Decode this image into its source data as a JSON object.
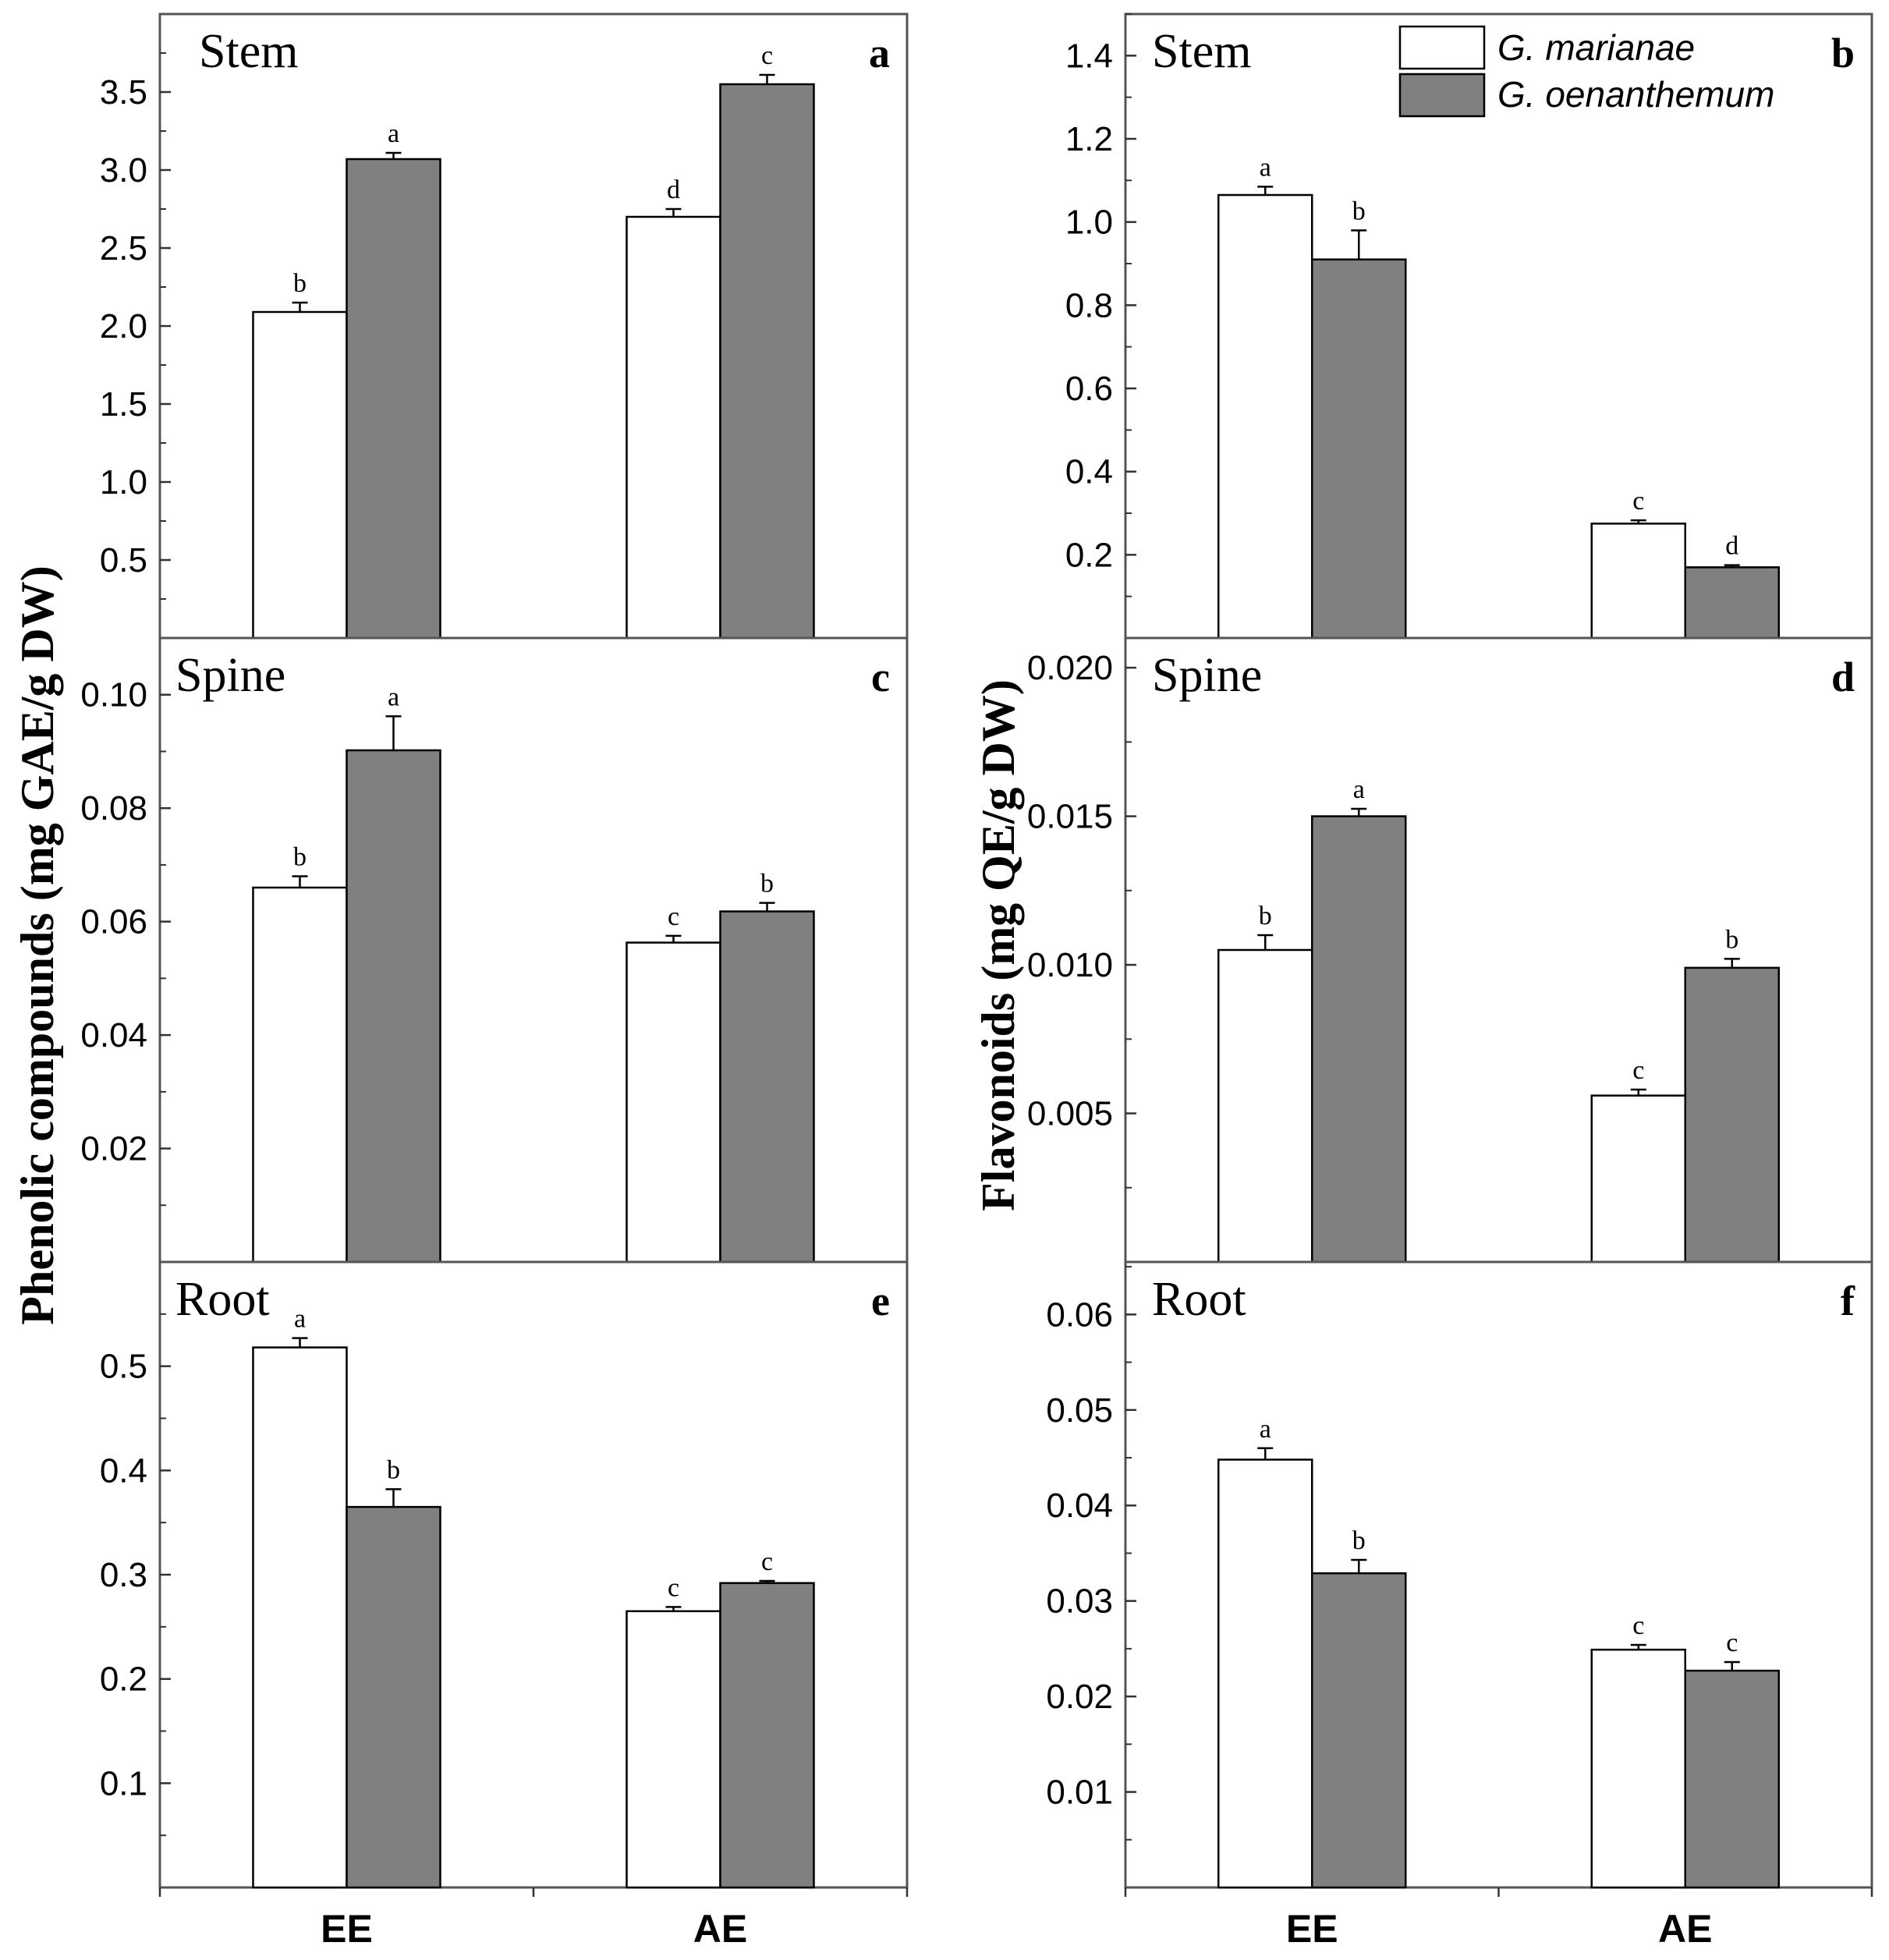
{
  "colors": {
    "series_1_fill": "#ffffff",
    "series_2_fill": "#808080",
    "stroke": "#000000",
    "frame": "#555555"
  },
  "y_axis_titles": {
    "left": "Phenolic compounds (mg GAE/g DW)",
    "right": "Flavonoids (mg QE/g DW)"
  },
  "legend": {
    "items": [
      {
        "label": "G. marianae",
        "color": "#ffffff"
      },
      {
        "label": "G. oenanthemum",
        "color": "#808080"
      }
    ]
  },
  "chart_data": [
    {
      "type": "bar",
      "panel": "a",
      "title": "Stem",
      "categories": [
        "EE",
        "AE"
      ],
      "series": [
        {
          "name": "G. marianae",
          "values": [
            2.09,
            2.7
          ],
          "errors": [
            0.06,
            0.05
          ],
          "labels": [
            "b",
            "d"
          ]
        },
        {
          "name": "G. oenanthemum",
          "values": [
            3.07,
            3.55
          ],
          "errors": [
            0.04,
            0.06
          ],
          "labels": [
            "a",
            "c"
          ]
        }
      ],
      "ylim": [
        0,
        4.0
      ],
      "yticks": [
        0.5,
        1.0,
        1.5,
        2.0,
        2.5,
        3.0,
        3.5
      ],
      "yticklabels": [
        "0.5",
        "1.0",
        "1.5",
        "2.0",
        "2.5",
        "3.0",
        "3.5"
      ]
    },
    {
      "type": "bar",
      "panel": "b",
      "title": "Stem",
      "categories": [
        "EE",
        "AE"
      ],
      "series": [
        {
          "name": "G. marianae",
          "values": [
            1.065,
            0.275
          ],
          "errors": [
            0.02,
            0.008
          ],
          "labels": [
            "a",
            "c"
          ]
        },
        {
          "name": "G. oenanthemum",
          "values": [
            0.91,
            0.17
          ],
          "errors": [
            0.07,
            0.005
          ],
          "labels": [
            "b",
            "d"
          ]
        }
      ],
      "ylim": [
        0,
        1.5
      ],
      "yticks": [
        0.2,
        0.4,
        0.6,
        0.8,
        1.0,
        1.2,
        1.4
      ],
      "yticklabels": [
        "0.2",
        "0.4",
        "0.6",
        "0.8",
        "1.0",
        "1.2",
        "1.4"
      ]
    },
    {
      "type": "bar",
      "panel": "c",
      "title": "Spine",
      "categories": [
        "EE",
        "AE"
      ],
      "series": [
        {
          "name": "G. marianae",
          "values": [
            0.066,
            0.0563
          ],
          "errors": [
            0.002,
            0.0012
          ],
          "labels": [
            "b",
            "c"
          ]
        },
        {
          "name": "G. oenanthemum",
          "values": [
            0.0902,
            0.0618
          ],
          "errors": [
            0.006,
            0.0015
          ],
          "labels": [
            "a",
            "b"
          ]
        }
      ],
      "ylim": [
        0,
        0.11
      ],
      "yticks": [
        0.02,
        0.04,
        0.06,
        0.08,
        0.1
      ],
      "yticklabels": [
        "0.02",
        "0.04",
        "0.06",
        "0.08",
        "0.10"
      ]
    },
    {
      "type": "bar",
      "panel": "d",
      "title": "Spine",
      "categories": [
        "EE",
        "AE"
      ],
      "series": [
        {
          "name": "G. marianae",
          "values": [
            0.0105,
            0.0056
          ],
          "errors": [
            0.0005,
            0.0002
          ],
          "labels": [
            "b",
            "c"
          ]
        },
        {
          "name": "G. oenanthemum",
          "values": [
            0.015,
            0.0099
          ],
          "errors": [
            0.00025,
            0.0003
          ],
          "labels": [
            "a",
            "b"
          ]
        }
      ],
      "ylim": [
        0,
        0.021
      ],
      "yticks": [
        0.005,
        0.01,
        0.015,
        0.02
      ],
      "yticklabels": [
        "0.005",
        "0.010",
        "0.015",
        "0.020"
      ]
    },
    {
      "type": "bar",
      "panel": "e",
      "title": "Root",
      "categories": [
        "EE",
        "AE"
      ],
      "series": [
        {
          "name": "G. marianae",
          "values": [
            0.518,
            0.265
          ],
          "errors": [
            0.009,
            0.004
          ],
          "labels": [
            "a",
            "c"
          ]
        },
        {
          "name": "G. oenanthemum",
          "values": [
            0.365,
            0.292
          ],
          "errors": [
            0.017,
            0.002
          ],
          "labels": [
            "b",
            "c"
          ]
        }
      ],
      "ylim": [
        0,
        0.6
      ],
      "yticks": [
        0.1,
        0.2,
        0.3,
        0.4,
        0.5
      ],
      "yticklabels": [
        "0.1",
        "0.2",
        "0.3",
        "0.4",
        "0.5"
      ]
    },
    {
      "type": "bar",
      "panel": "f",
      "title": "Root",
      "categories": [
        "EE",
        "AE"
      ],
      "series": [
        {
          "name": "G. marianae",
          "values": [
            0.0448,
            0.0249
          ],
          "errors": [
            0.0012,
            0.0005
          ],
          "labels": [
            "a",
            "c"
          ]
        },
        {
          "name": "G. oenanthemum",
          "values": [
            0.0329,
            0.0227
          ],
          "errors": [
            0.0014,
            0.0009
          ],
          "labels": [
            "b",
            "c"
          ]
        }
      ],
      "ylim": [
        0,
        0.0655
      ],
      "yticks": [
        0.01,
        0.02,
        0.03,
        0.04,
        0.05,
        0.06
      ],
      "yticklabels": [
        "0.01",
        "0.02",
        "0.03",
        "0.04",
        "0.05",
        "0.06"
      ]
    }
  ]
}
